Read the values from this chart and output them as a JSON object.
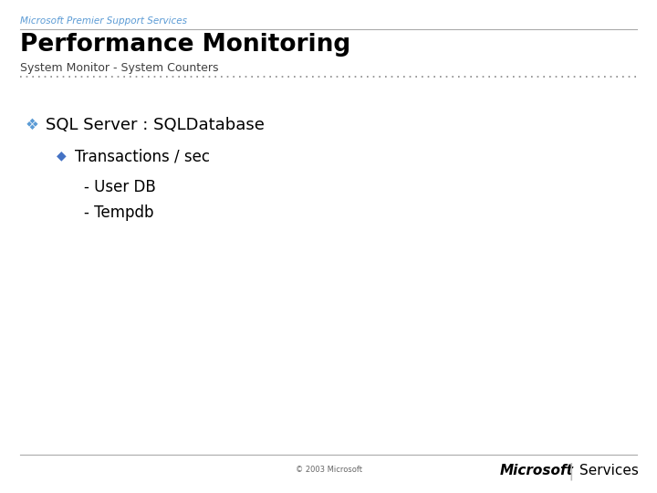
{
  "bg_color": "#ffffff",
  "header_company": "Microsoft Premier Support Services",
  "header_title": "Performance Monitoring",
  "header_subtitle": "System Monitor - System Counters",
  "header_company_color": "#5b9bd5",
  "header_title_color": "#000000",
  "header_subtitle_color": "#404040",
  "separator_color": "#aaaaaa",
  "dotted_line_color": "#888888",
  "bullet1_color": "#5b9bd5",
  "bullet2_color": "#4472c4",
  "bullet1_text": "SQL Server : SQLDatabase",
  "bullet2_text": "Transactions / sec",
  "sub1_text": "- User DB",
  "sub2_text": "- Tempdb",
  "footer_copyright": "© 2003 Microsoft",
  "footer_brand": "Microsoft",
  "footer_service": "Services",
  "footer_separator_color": "#aaaaaa"
}
